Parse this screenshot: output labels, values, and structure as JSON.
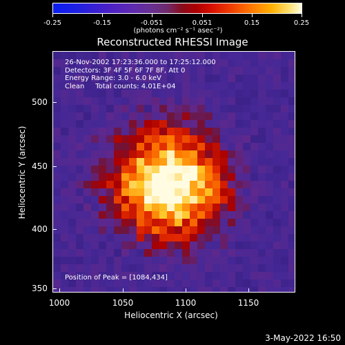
{
  "colorbar": {
    "ticks": [
      "-0.25",
      "-0.15",
      "-0.051",
      "0.051",
      "0.15",
      "0.25"
    ],
    "units": "(photons cm⁻² s⁻¹ asec⁻²)"
  },
  "title": "Reconstructed RHESSI Image",
  "info": {
    "line1": "26-Nov-2002 17:23:36.000 to 17:25:12.000",
    "line2": "Detectors: 3F 4F 5F 6F 7F 8F, Att 0",
    "line3": "Energy Range: 3.0 - 6.0 keV",
    "line4": "Clean     Total counts: 4.01E+04"
  },
  "peak_text": "Position of Peak = [1084,434]",
  "axes": {
    "xlabel": "Heliocentric X (arcsec)",
    "ylabel": "Heliocentric Y (arcsec)",
    "xticks": [
      "1000",
      "1050",
      "1100",
      "1150"
    ],
    "yticks": [
      "500",
      "450",
      "400",
      "350"
    ]
  },
  "timestamp": "3-May-2022 16:50",
  "colors": {
    "background": "#000000",
    "low": "#3c1a78",
    "mid": "#c01000",
    "high": "#fffde0"
  }
}
